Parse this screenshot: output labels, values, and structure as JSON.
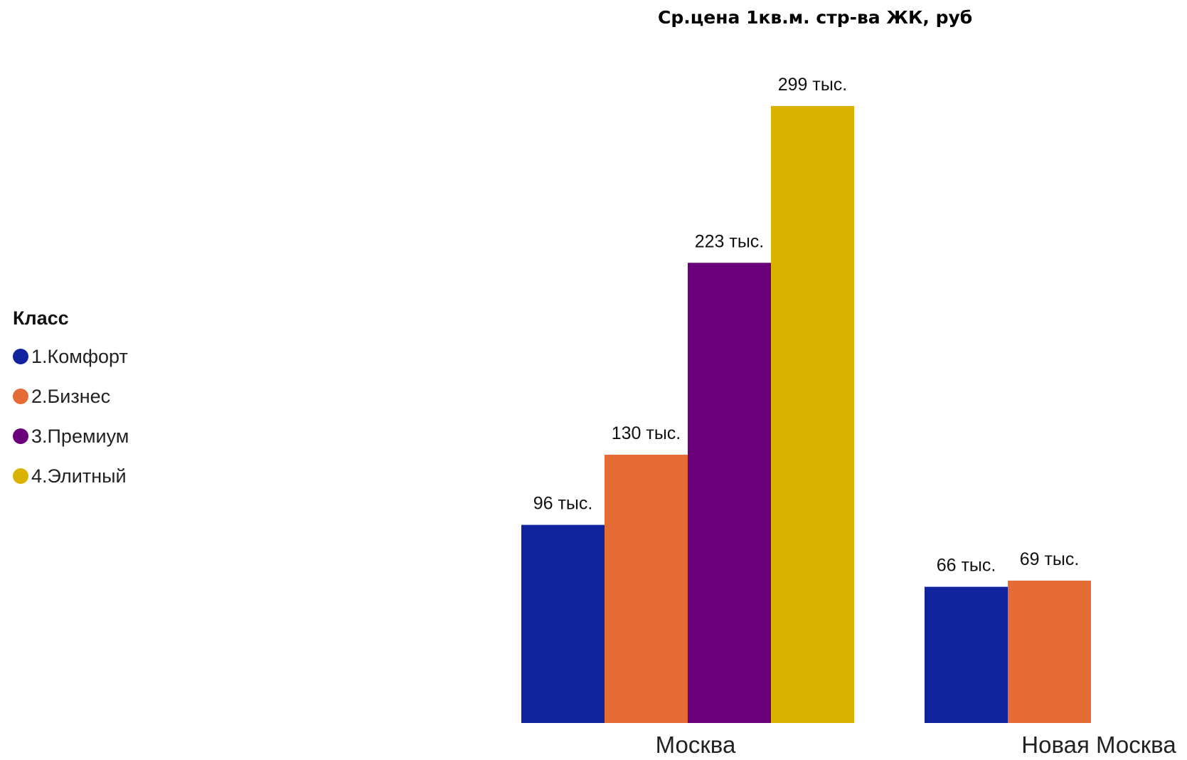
{
  "chart_data": {
    "type": "bar",
    "title": "Ср.цена 1кв.м. стр-ва ЖК, руб",
    "xlabel": "",
    "ylabel": "",
    "categories": [
      "Москва",
      "Новая Москва"
    ],
    "legend_title": "Класс",
    "legend_position": "left",
    "grid": false,
    "ylim": [
      0,
      320
    ],
    "series": [
      {
        "name": "1.Комфорт",
        "color": "#12239e",
        "values": [
          96,
          66
        ],
        "labels": [
          "96 тыс.",
          "66 тыс."
        ]
      },
      {
        "name": "2.Бизнес",
        "color": "#e66c37",
        "values": [
          130,
          69
        ],
        "labels": [
          "130 тыс.",
          "69 тыс."
        ]
      },
      {
        "name": "3.Премиум",
        "color": "#6b007b",
        "values": [
          223,
          null
        ],
        "labels": [
          "223 тыс.",
          null
        ]
      },
      {
        "name": "4.Элитный",
        "color": "#d9b300",
        "values": [
          299,
          null
        ],
        "labels": [
          "299 тыс.",
          null
        ]
      }
    ]
  }
}
